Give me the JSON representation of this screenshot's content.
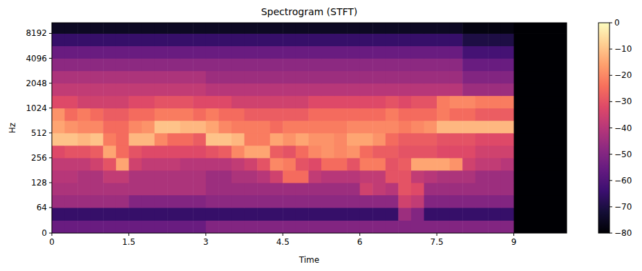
{
  "chart_data": {
    "type": "heatmap",
    "title": "Spectrogram (STFT)",
    "x_label": "Time",
    "y_label": "Hz",
    "xlim": [
      0,
      10.03
    ],
    "ylim": [
      0,
      11025
    ],
    "xticks": [
      0,
      1.5,
      3,
      4.5,
      6,
      7.5,
      9
    ],
    "yticks": [
      0,
      64,
      128,
      256,
      512,
      1024,
      2048,
      4096,
      8192
    ],
    "log": "y",
    "x_edges": [
      0,
      0.25,
      0.5,
      0.75,
      1,
      1.25,
      1.5,
      1.75,
      2,
      2.25,
      2.5,
      2.75,
      3,
      3.25,
      3.5,
      3.75,
      4,
      4.25,
      4.5,
      4.75,
      5,
      5.25,
      5.5,
      5.75,
      6,
      6.25,
      6.5,
      6.75,
      7,
      7.25,
      7.5,
      7.75,
      8,
      8.25,
      8.5,
      8.75,
      9,
      10.03
    ],
    "y_edges": [
      0,
      32,
      64,
      91,
      128,
      181,
      256,
      362,
      512,
      724,
      1024,
      1448,
      2048,
      2896,
      4096,
      5793,
      8192,
      11025
    ],
    "cells": [
      [
        -55,
        -55,
        -55,
        -55,
        -55,
        -55,
        -55,
        -55,
        -55,
        -55,
        -55,
        -55,
        -50,
        -50,
        -50,
        -50,
        -50,
        -50,
        -50,
        -50,
        -50,
        -50,
        -50,
        -50,
        -50,
        -50,
        -50,
        -50,
        -50,
        -50,
        -50,
        -50,
        -50,
        -50,
        -50,
        -50,
        -80
      ],
      [
        -65,
        -65,
        -65,
        -65,
        -65,
        -65,
        -65,
        -65,
        -65,
        -65,
        -65,
        -65,
        -65,
        -65,
        -65,
        -65,
        -65,
        -65,
        -65,
        -65,
        -65,
        -65,
        -65,
        -65,
        -65,
        -65,
        -65,
        -45,
        -50,
        -65,
        -65,
        -65,
        -65,
        -65,
        -65,
        -65,
        -80
      ],
      [
        -45,
        -45,
        -45,
        -45,
        -45,
        -45,
        -50,
        -50,
        -50,
        -50,
        -50,
        -50,
        -48,
        -48,
        -48,
        -48,
        -48,
        -48,
        -48,
        -48,
        -48,
        -48,
        -48,
        -48,
        -48,
        -48,
        -48,
        -35,
        -38,
        -50,
        -50,
        -50,
        -50,
        -50,
        -50,
        -50,
        -80
      ],
      [
        -42,
        -42,
        -42,
        -42,
        -42,
        -42,
        -42,
        -42,
        -42,
        -42,
        -42,
        -42,
        -45,
        -45,
        -45,
        -45,
        -45,
        -45,
        -45,
        -45,
        -45,
        -45,
        -45,
        -45,
        -35,
        -38,
        -40,
        -30,
        -32,
        -45,
        -45,
        -45,
        -45,
        -45,
        -45,
        -45,
        -80
      ],
      [
        -40,
        -40,
        -42,
        -42,
        -38,
        -38,
        -42,
        -42,
        -42,
        -42,
        -42,
        -42,
        -45,
        -45,
        -42,
        -42,
        -40,
        -35,
        -25,
        -25,
        -38,
        -40,
        -40,
        -40,
        -38,
        -38,
        -30,
        -30,
        -38,
        -40,
        -42,
        -42,
        -42,
        -45,
        -45,
        -45,
        -80
      ],
      [
        -38,
        -38,
        -38,
        -35,
        -30,
        -15,
        -35,
        -38,
        -38,
        -38,
        -40,
        -40,
        -40,
        -40,
        -38,
        -35,
        -30,
        -20,
        -22,
        -30,
        -32,
        -25,
        -25,
        -30,
        -22,
        -22,
        -30,
        -28,
        -15,
        -15,
        -15,
        -18,
        -35,
        -38,
        -38,
        -40,
        -80
      ],
      [
        -32,
        -30,
        -30,
        -28,
        -15,
        -25,
        -30,
        -32,
        -32,
        -32,
        -32,
        -32,
        -30,
        -28,
        -20,
        -15,
        -15,
        -28,
        -30,
        -25,
        -20,
        -18,
        -20,
        -18,
        -25,
        -28,
        -28,
        -30,
        -30,
        -30,
        -32,
        -32,
        -32,
        -35,
        -35,
        -35,
        -80
      ],
      [
        -10,
        -10,
        -12,
        -10,
        -22,
        -25,
        -12,
        -12,
        -20,
        -25,
        -25,
        -28,
        -10,
        -10,
        -12,
        -22,
        -22,
        -15,
        -18,
        -15,
        -18,
        -18,
        -20,
        -15,
        -15,
        -18,
        -25,
        -28,
        -28,
        -28,
        -30,
        -30,
        -30,
        -32,
        -32,
        -32,
        -80
      ],
      [
        -15,
        -18,
        -20,
        -20,
        -25,
        -25,
        -20,
        -18,
        -10,
        -10,
        -12,
        -12,
        -15,
        -20,
        -22,
        -22,
        -22,
        -25,
        -22,
        -22,
        -22,
        -22,
        -22,
        -20,
        -20,
        -20,
        -20,
        -22,
        -20,
        -18,
        -12,
        -12,
        -12,
        -12,
        -12,
        -12,
        -80
      ],
      [
        -18,
        -25,
        -22,
        -25,
        -28,
        -28,
        -25,
        -25,
        -22,
        -22,
        -22,
        -25,
        -22,
        -25,
        -25,
        -28,
        -28,
        -28,
        -28,
        -28,
        -25,
        -25,
        -25,
        -25,
        -25,
        -25,
        -22,
        -25,
        -25,
        -25,
        -22,
        -25,
        -25,
        -28,
        -28,
        -28,
        -80
      ],
      [
        -32,
        -32,
        -35,
        -35,
        -35,
        -35,
        -32,
        -32,
        -30,
        -30,
        -30,
        -32,
        -32,
        -32,
        -35,
        -35,
        -35,
        -35,
        -35,
        -35,
        -32,
        -32,
        -32,
        -32,
        -32,
        -32,
        -30,
        -32,
        -30,
        -30,
        -22,
        -20,
        -20,
        -22,
        -22,
        -22,
        -80
      ],
      [
        -38,
        -38,
        -38,
        -38,
        -38,
        -38,
        -38,
        -38,
        -38,
        -38,
        -38,
        -38,
        -40,
        -40,
        -40,
        -40,
        -40,
        -40,
        -40,
        -40,
        -40,
        -40,
        -40,
        -40,
        -40,
        -40,
        -40,
        -40,
        -40,
        -40,
        -40,
        -40,
        -45,
        -45,
        -45,
        -45,
        -80
      ],
      [
        -42,
        -42,
        -42,
        -42,
        -42,
        -42,
        -42,
        -42,
        -42,
        -42,
        -42,
        -42,
        -45,
        -45,
        -45,
        -45,
        -45,
        -45,
        -45,
        -45,
        -45,
        -45,
        -45,
        -45,
        -45,
        -45,
        -45,
        -45,
        -45,
        -45,
        -45,
        -45,
        -50,
        -50,
        -50,
        -50,
        -80
      ],
      [
        -48,
        -48,
        -48,
        -48,
        -48,
        -48,
        -48,
        -48,
        -48,
        -48,
        -48,
        -48,
        -48,
        -48,
        -48,
        -48,
        -48,
        -48,
        -48,
        -48,
        -48,
        -48,
        -48,
        -48,
        -48,
        -48,
        -48,
        -48,
        -48,
        -48,
        -48,
        -48,
        -55,
        -55,
        -55,
        -55,
        -80
      ],
      [
        -55,
        -55,
        -55,
        -55,
        -55,
        -55,
        -55,
        -55,
        -55,
        -55,
        -55,
        -55,
        -55,
        -55,
        -55,
        -55,
        -55,
        -55,
        -55,
        -55,
        -55,
        -55,
        -55,
        -55,
        -55,
        -55,
        -55,
        -55,
        -55,
        -55,
        -55,
        -55,
        -62,
        -62,
        -62,
        -62,
        -80
      ],
      [
        -65,
        -65,
        -65,
        -65,
        -65,
        -65,
        -65,
        -65,
        -65,
        -65,
        -65,
        -65,
        -65,
        -65,
        -65,
        -65,
        -65,
        -65,
        -65,
        -65,
        -65,
        -65,
        -65,
        -65,
        -65,
        -65,
        -65,
        -65,
        -65,
        -65,
        -65,
        -65,
        -70,
        -70,
        -70,
        -70,
        -80
      ],
      [
        -75,
        -75,
        -75,
        -75,
        -75,
        -75,
        -75,
        -75,
        -75,
        -75,
        -75,
        -75,
        -75,
        -75,
        -75,
        -75,
        -75,
        -75,
        -75,
        -75,
        -75,
        -75,
        -75,
        -75,
        -75,
        -75,
        -75,
        -75,
        -75,
        -75,
        -75,
        -75,
        -78,
        -78,
        -78,
        -78,
        -80
      ]
    ],
    "colorbar": {
      "range": [
        -80,
        0
      ],
      "ticks": [
        0,
        {
          "value": -10,
          "label": "−10"
        },
        {
          "value": -20,
          "label": "−20"
        },
        {
          "value": -30,
          "label": "−30"
        },
        {
          "value": -40,
          "label": "−40"
        },
        {
          "value": -50,
          "label": "−50"
        },
        {
          "value": -60,
          "label": "−60"
        },
        {
          "value": -70,
          "label": "−70"
        },
        {
          "value": -80,
          "label": "−80"
        }
      ]
    }
  }
}
